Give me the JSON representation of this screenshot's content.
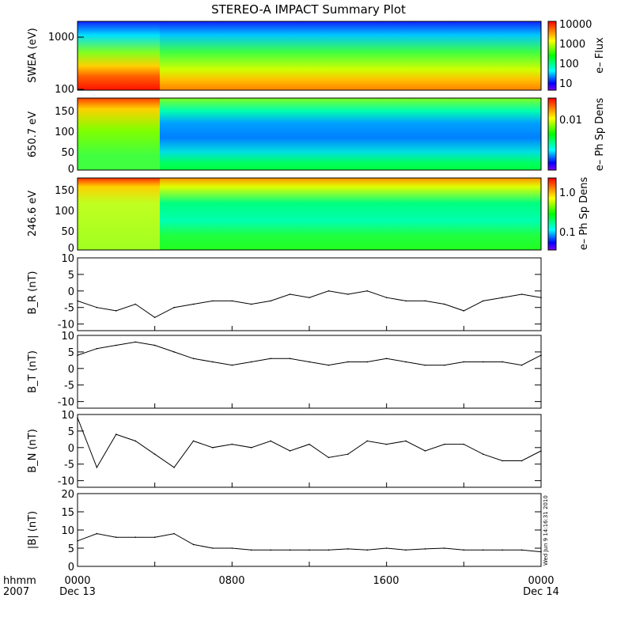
{
  "title": "STEREO-A IMPACT Summary Plot",
  "colors": {
    "line": "#000000",
    "axis": "#000000",
    "background": "#ffffff"
  },
  "spectrograms": [
    {
      "ylabel": "SWEA (eV)",
      "ticks": [
        "1000",
        "100"
      ],
      "cbar_label": "e– Flux",
      "cbar_ticks": [
        "10000",
        "1000",
        "100",
        "10"
      ],
      "cbar_colors": [
        "#ff0000",
        "#ffff00",
        "#00ff00",
        "#00ffff",
        "#0000ff",
        "#8000ff"
      ]
    },
    {
      "ylabel": "650.7 eV",
      "ticks": [
        "150",
        "100",
        "50",
        "0"
      ],
      "cbar_label": "e– Ph Sp Dens",
      "cbar_ticks": [
        "0.01"
      ],
      "cbar_colors": [
        "#ff0000",
        "#ffff00",
        "#00ff00",
        "#00ffff",
        "#0000ff",
        "#8000ff"
      ]
    },
    {
      "ylabel": "246.6 eV",
      "ticks": [
        "150",
        "100",
        "50",
        "0"
      ],
      "cbar_label": "e– Ph Sp Dens",
      "cbar_ticks": [
        "1.0",
        "0.1"
      ],
      "cbar_colors": [
        "#ff0000",
        "#ffff00",
        "#00ff00",
        "#00ffff",
        "#0000ff",
        "#8000ff"
      ]
    }
  ],
  "chart_data": [
    {
      "type": "line",
      "ylabel": "B_R (nT)",
      "ylim": [
        -12,
        10
      ],
      "yticks": [
        10,
        5,
        0,
        -5,
        -10
      ],
      "x_hours": [
        0,
        1,
        2,
        3,
        4,
        5,
        6,
        7,
        8,
        9,
        10,
        11,
        12,
        13,
        14,
        15,
        16,
        17,
        18,
        19,
        20,
        21,
        22,
        23,
        24
      ],
      "values": [
        -3,
        -5,
        -6,
        -4,
        -8,
        -5,
        -4,
        -3,
        -3,
        -4,
        -3,
        -1,
        -2,
        0,
        -1,
        0,
        -2,
        -3,
        -3,
        -4,
        -6,
        -3,
        -2,
        -1,
        -2
      ]
    },
    {
      "type": "line",
      "ylabel": "B_T (nT)",
      "ylim": [
        -12,
        10
      ],
      "yticks": [
        10,
        5,
        0,
        -5,
        -10
      ],
      "x_hours": [
        0,
        1,
        2,
        3,
        4,
        5,
        6,
        7,
        8,
        9,
        10,
        11,
        12,
        13,
        14,
        15,
        16,
        17,
        18,
        19,
        20,
        21,
        22,
        23,
        24
      ],
      "values": [
        4,
        6,
        7,
        8,
        7,
        5,
        3,
        2,
        1,
        2,
        3,
        3,
        2,
        1,
        2,
        2,
        3,
        2,
        1,
        1,
        2,
        2,
        2,
        1,
        4
      ]
    },
    {
      "type": "line",
      "ylabel": "B_N (nT)",
      "ylim": [
        -12,
        10
      ],
      "yticks": [
        10,
        5,
        0,
        -5,
        -10
      ],
      "x_hours": [
        0,
        1,
        2,
        3,
        4,
        5,
        6,
        7,
        8,
        9,
        10,
        11,
        12,
        13,
        14,
        15,
        16,
        17,
        18,
        19,
        20,
        21,
        22,
        23,
        24
      ],
      "values": [
        9,
        -6,
        4,
        2,
        -2,
        -6,
        2,
        0,
        1,
        0,
        2,
        -1,
        1,
        -3,
        -2,
        2,
        1,
        2,
        -1,
        1,
        1,
        -2,
        -4,
        -4,
        -1
      ]
    },
    {
      "type": "line",
      "ylabel": "|B| (nT)",
      "ylim": [
        0,
        20
      ],
      "yticks": [
        20,
        15,
        10,
        5,
        0
      ],
      "x_hours": [
        0,
        1,
        2,
        3,
        4,
        5,
        6,
        7,
        8,
        9,
        10,
        11,
        12,
        13,
        14,
        15,
        16,
        17,
        18,
        19,
        20,
        21,
        22,
        23,
        24
      ],
      "values": [
        7,
        9,
        8,
        8,
        8,
        9,
        6,
        5,
        5,
        4.5,
        4.5,
        4.5,
        4.5,
        4.5,
        4.8,
        4.5,
        5,
        4.5,
        4.8,
        5,
        4.5,
        4.5,
        4.5,
        4.5,
        4
      ]
    }
  ],
  "x_axis": {
    "corner_top": "hhmm",
    "corner_bottom": "2007",
    "ticks": [
      {
        "time": "0000",
        "date": "Dec 13"
      },
      {
        "time": "0800",
        "date": ""
      },
      {
        "time": "1600",
        "date": ""
      },
      {
        "time": "0000",
        "date": "Dec 14"
      }
    ]
  },
  "timestamp": "Wed Jun  9 14:16:31 2010"
}
